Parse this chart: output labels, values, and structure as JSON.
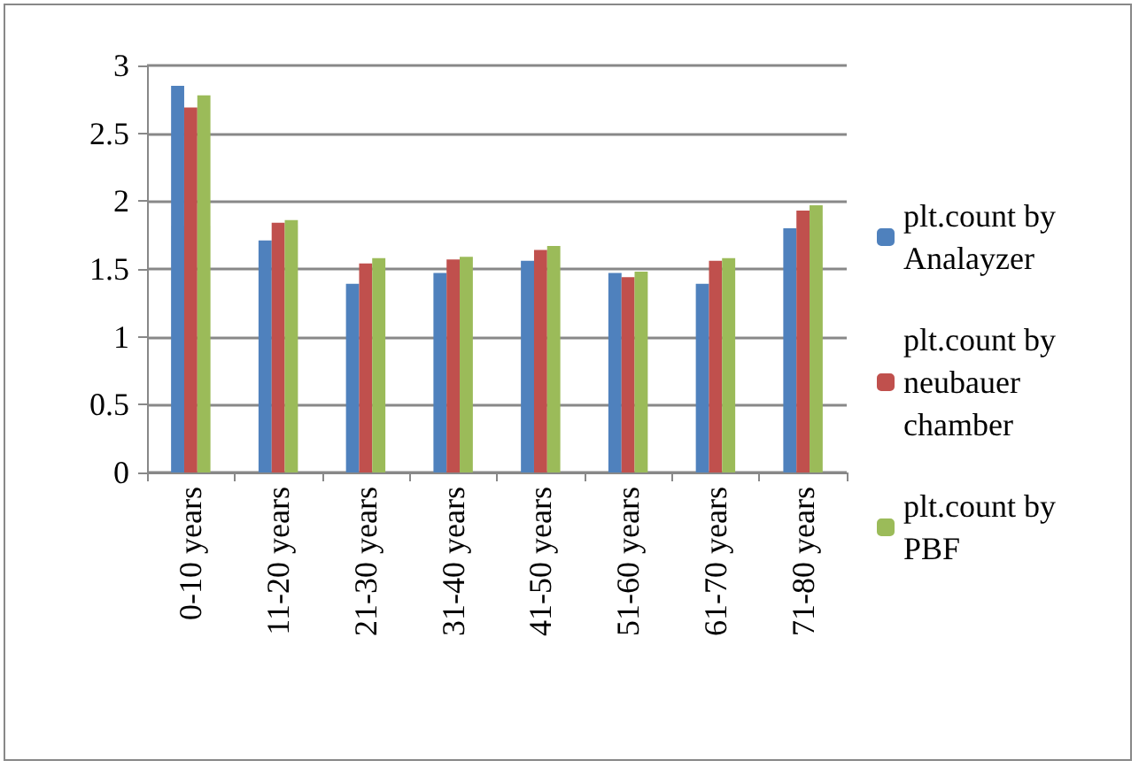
{
  "chart_data": {
    "type": "bar",
    "categories": [
      "0-10 years",
      "11-20 years",
      "21-30 years",
      "31-40 years",
      "41-50 years",
      "51-60 years",
      "61-70 years",
      "71-80 years"
    ],
    "series": [
      {
        "name": "plt.count by Analayzer",
        "color": "#4f81bd",
        "values": [
          2.85,
          1.71,
          1.39,
          1.47,
          1.56,
          1.47,
          1.39,
          1.8
        ]
      },
      {
        "name": "plt.count by neubauer chamber",
        "color": "#c0504d",
        "values": [
          2.69,
          1.84,
          1.54,
          1.57,
          1.64,
          1.44,
          1.56,
          1.93
        ]
      },
      {
        "name": "plt.count by PBF",
        "color": "#9bbb59",
        "values": [
          2.78,
          1.86,
          1.58,
          1.59,
          1.67,
          1.48,
          1.58,
          1.97
        ]
      }
    ],
    "ylim": [
      0,
      3
    ],
    "yticks": [
      0,
      0.5,
      1,
      1.5,
      2,
      2.5,
      3
    ],
    "grid": "y",
    "legend": "right"
  }
}
